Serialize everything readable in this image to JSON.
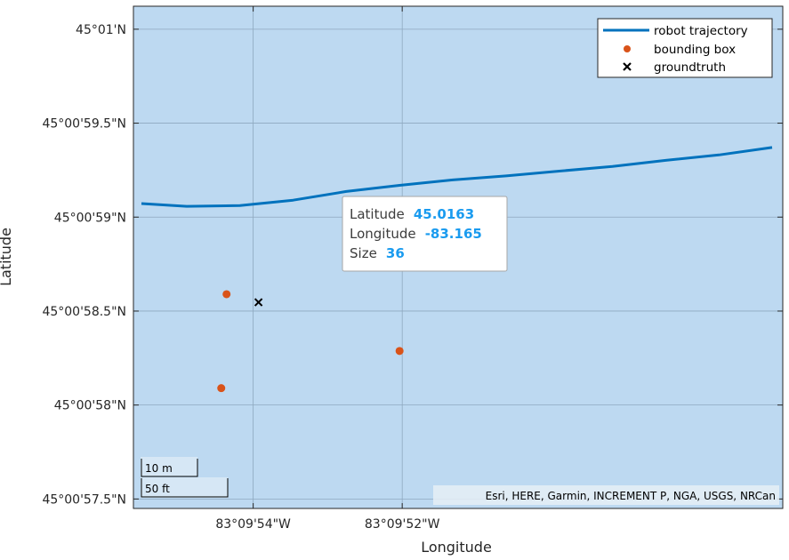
{
  "chart_data": {
    "type": "scatter",
    "xlabel": "Longitude",
    "ylabel": "Latitude",
    "x_ticks": [
      {
        "value": -83.165,
        "label": "83°09'54\"W"
      },
      {
        "value": -83.16444,
        "label": "83°09'52\"W"
      }
    ],
    "y_ticks": [
      {
        "value": 45.016667,
        "label": "45°01'N"
      },
      {
        "value": 45.016528,
        "label": "45°00'59.5\"N"
      },
      {
        "value": 45.016389,
        "label": "45°00'59\"N"
      },
      {
        "value": 45.01625,
        "label": "45°00'58.5\"N"
      },
      {
        "value": 45.016111,
        "label": "45°00'58\"N"
      },
      {
        "value": 45.015972,
        "label": "45°00'57.5\"N"
      }
    ],
    "xlim": [
      -83.16545,
      -83.16301
    ],
    "ylim": [
      45.015958,
      45.016701
    ],
    "grid": true,
    "basemap_color": "#bdd9f1",
    "legend_position": "top-right",
    "series": [
      {
        "name": "robot trajectory",
        "kind": "line",
        "color": "#0072bd",
        "x": [
          -83.16542,
          -83.16525,
          -83.16505,
          -83.16485,
          -83.16465,
          -83.16445,
          -83.16425,
          -83.16405,
          -83.16385,
          -83.16365,
          -83.16345,
          -83.16325,
          -83.16305
        ],
        "y": [
          45.016409,
          45.016405,
          45.016406,
          45.016414,
          45.016427,
          45.016436,
          45.016444,
          45.01645,
          45.016457,
          45.016464,
          45.016473,
          45.016481,
          45.016492
        ]
      },
      {
        "name": "bounding box",
        "kind": "marker",
        "color": "#d95319",
        "x": [
          -83.1651,
          -83.16512,
          -83.16443,
          -83.16445
        ],
        "y": [
          45.016275,
          45.016136,
          45.016325,
          45.016191
        ]
      },
      {
        "name": "groundtruth",
        "kind": "x-marker",
        "color": "#000000",
        "x": [
          -83.16498
        ],
        "y": [
          45.016263
        ]
      }
    ],
    "datatip": {
      "rows": [
        {
          "label": "Latitude",
          "value": "45.0163"
        },
        {
          "label": "Longitude",
          "value": "-83.165"
        },
        {
          "label": "Size",
          "value": "36"
        }
      ]
    },
    "scalebar": {
      "metric": "10 m",
      "imperial": "50 ft"
    },
    "attribution": "Esri, HERE, Garmin, INCREMENT P, NGA, USGS, NRCan"
  }
}
